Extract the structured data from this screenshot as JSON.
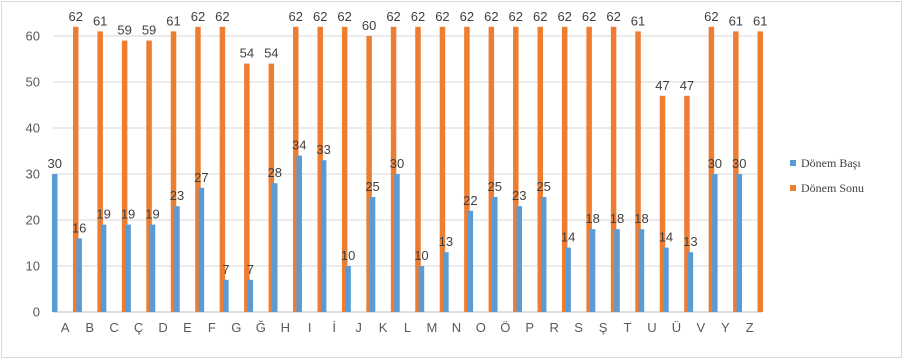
{
  "chart_data": {
    "type": "bar",
    "categories": [
      "A",
      "B",
      "C",
      "Ç",
      "D",
      "E",
      "F",
      "G",
      "Ğ",
      "H",
      "I",
      "İ",
      "J",
      "K",
      "L",
      "M",
      "N",
      "O",
      "Ö",
      "P",
      "R",
      "S",
      "Ş",
      "T",
      "U",
      "Ü",
      "V",
      "Y",
      "Z"
    ],
    "series": [
      {
        "name": "Dönem Başı",
        "color": "#5b9bd5",
        "values": [
          30,
          16,
          19,
          19,
          19,
          23,
          27,
          7,
          7,
          28,
          34,
          33,
          10,
          25,
          30,
          10,
          13,
          22,
          25,
          23,
          25,
          14,
          18,
          18,
          18,
          14,
          13,
          30,
          30
        ]
      },
      {
        "name": "Dönem Sonu",
        "color": "#ed7d31",
        "values": [
          62,
          61,
          59,
          59,
          61,
          62,
          62,
          54,
          54,
          62,
          62,
          62,
          60,
          62,
          62,
          62,
          62,
          62,
          62,
          62,
          62,
          62,
          62,
          61,
          47,
          47,
          62,
          61,
          61
        ]
      }
    ],
    "title": "",
    "xlabel": "",
    "ylabel": "",
    "ylim": [
      0,
      60
    ],
    "yticks": [
      0,
      10,
      20,
      30,
      40,
      50,
      60
    ],
    "grid": true,
    "legend_position": "right",
    "data_labels": true
  }
}
